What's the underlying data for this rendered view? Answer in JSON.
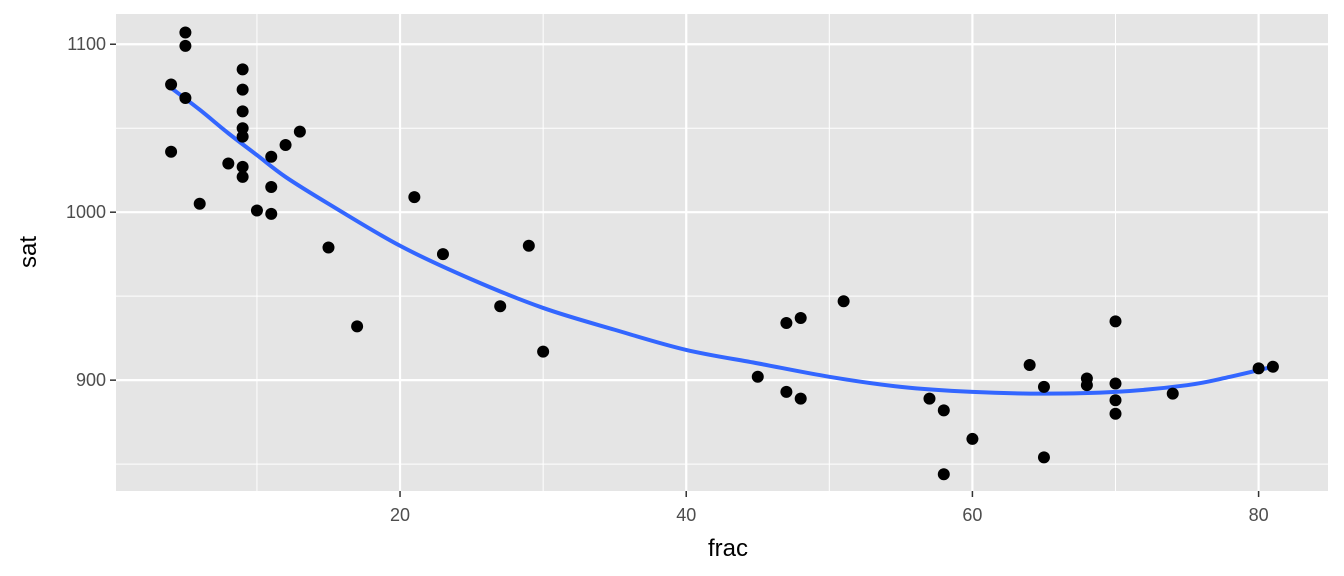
{
  "chart_data": {
    "type": "scatter",
    "xlabel": "frac",
    "ylabel": "sat",
    "xlim": [
      0.15,
      84.85
    ],
    "ylim": [
      834,
      1118
    ],
    "x_ticks": [
      20,
      40,
      60,
      80
    ],
    "x_minor_ticks": [
      10,
      30,
      50,
      70
    ],
    "y_ticks": [
      900,
      1000,
      1100
    ],
    "y_minor_ticks": [
      850,
      950,
      1050
    ],
    "grid": true,
    "legend": "none",
    "colors": {
      "panel_background": "#e5e5e5",
      "grid": "#ffffff",
      "points": "#000000",
      "smooth_line": "#3366ff"
    },
    "points": [
      {
        "x": 4,
        "y": 1036
      },
      {
        "x": 4,
        "y": 1076
      },
      {
        "x": 5,
        "y": 1107
      },
      {
        "x": 5,
        "y": 1099
      },
      {
        "x": 5,
        "y": 1068
      },
      {
        "x": 6,
        "y": 1005
      },
      {
        "x": 8,
        "y": 1029
      },
      {
        "x": 9,
        "y": 1085
      },
      {
        "x": 9,
        "y": 1073
      },
      {
        "x": 9,
        "y": 1060
      },
      {
        "x": 9,
        "y": 1050
      },
      {
        "x": 9,
        "y": 1045
      },
      {
        "x": 9,
        "y": 1027
      },
      {
        "x": 9,
        "y": 1021
      },
      {
        "x": 10,
        "y": 1001
      },
      {
        "x": 11,
        "y": 1033
      },
      {
        "x": 11,
        "y": 1015
      },
      {
        "x": 11,
        "y": 999
      },
      {
        "x": 12,
        "y": 1040
      },
      {
        "x": 13,
        "y": 1048
      },
      {
        "x": 15,
        "y": 979
      },
      {
        "x": 17,
        "y": 932
      },
      {
        "x": 21,
        "y": 1009
      },
      {
        "x": 23,
        "y": 975
      },
      {
        "x": 27,
        "y": 944
      },
      {
        "x": 29,
        "y": 980
      },
      {
        "x": 30,
        "y": 917
      },
      {
        "x": 45,
        "y": 902
      },
      {
        "x": 47,
        "y": 934
      },
      {
        "x": 47,
        "y": 893
      },
      {
        "x": 48,
        "y": 937
      },
      {
        "x": 48,
        "y": 889
      },
      {
        "x": 51,
        "y": 947
      },
      {
        "x": 57,
        "y": 889
      },
      {
        "x": 58,
        "y": 882
      },
      {
        "x": 58,
        "y": 844
      },
      {
        "x": 60,
        "y": 865
      },
      {
        "x": 64,
        "y": 909
      },
      {
        "x": 65,
        "y": 896
      },
      {
        "x": 65,
        "y": 854
      },
      {
        "x": 68,
        "y": 901
      },
      {
        "x": 68,
        "y": 897
      },
      {
        "x": 70,
        "y": 935
      },
      {
        "x": 70,
        "y": 898
      },
      {
        "x": 70,
        "y": 888
      },
      {
        "x": 70,
        "y": 880
      },
      {
        "x": 74,
        "y": 892
      },
      {
        "x": 80,
        "y": 907
      },
      {
        "x": 81,
        "y": 908
      }
    ],
    "smooth_line": [
      {
        "x": 4,
        "y": 1074
      },
      {
        "x": 6,
        "y": 1061
      },
      {
        "x": 8,
        "y": 1047
      },
      {
        "x": 10,
        "y": 1034
      },
      {
        "x": 12,
        "y": 1021
      },
      {
        "x": 15,
        "y": 1005
      },
      {
        "x": 20,
        "y": 980
      },
      {
        "x": 25,
        "y": 960
      },
      {
        "x": 30,
        "y": 943
      },
      {
        "x": 35,
        "y": 930
      },
      {
        "x": 40,
        "y": 918
      },
      {
        "x": 45,
        "y": 910
      },
      {
        "x": 50,
        "y": 902
      },
      {
        "x": 55,
        "y": 896
      },
      {
        "x": 60,
        "y": 893
      },
      {
        "x": 65,
        "y": 892
      },
      {
        "x": 70,
        "y": 893
      },
      {
        "x": 75,
        "y": 897
      },
      {
        "x": 78,
        "y": 902
      },
      {
        "x": 81,
        "y": 908
      }
    ]
  }
}
